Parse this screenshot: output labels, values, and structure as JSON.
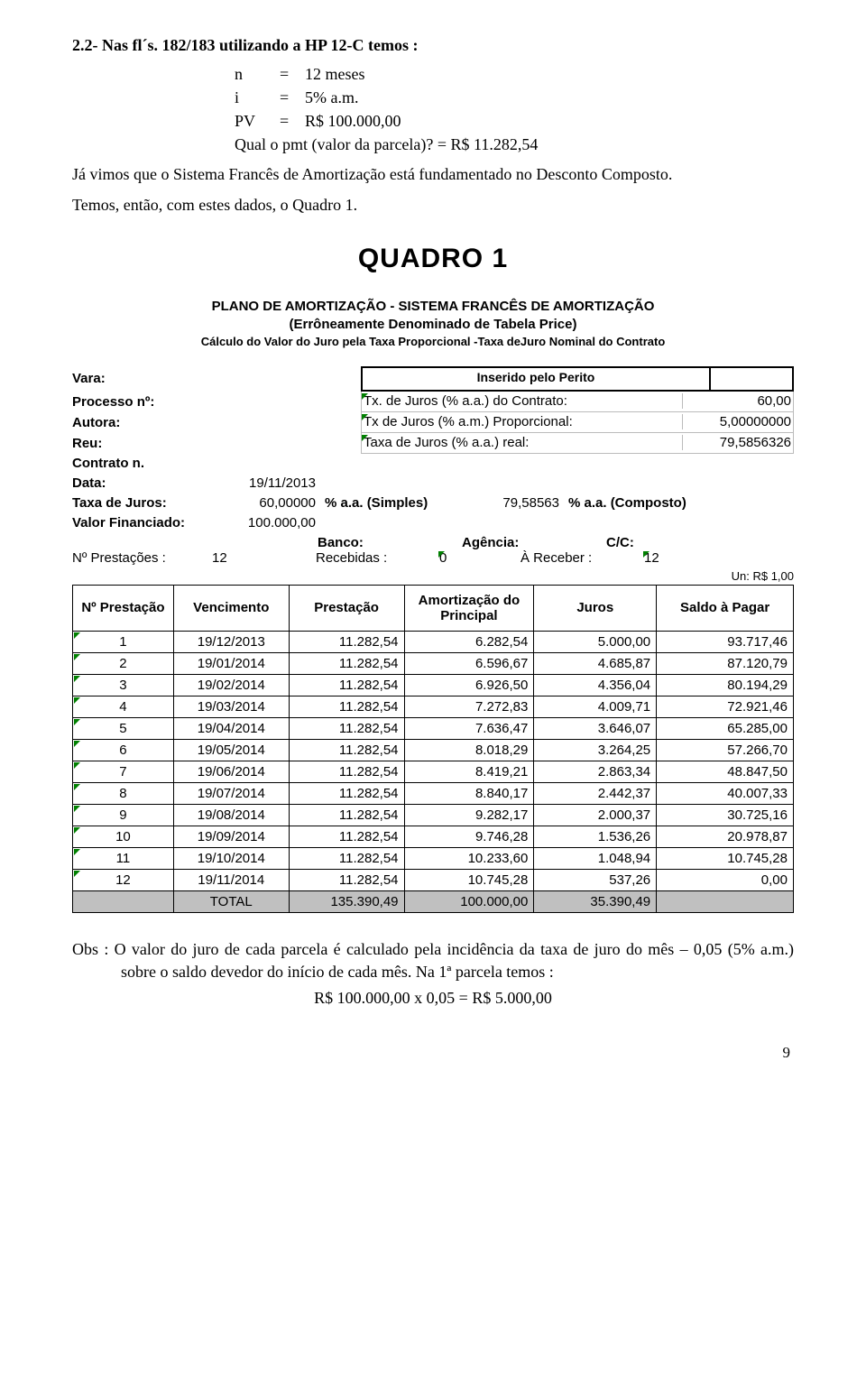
{
  "intro": {
    "heading": "2.2-  Nas fl´s. 182/183 utilizando a HP 12-C temos :",
    "lines": [
      {
        "lbl": "n",
        "eq": "=",
        "val": "12 meses"
      },
      {
        "lbl": "i",
        "eq": "=",
        "val": "5% a.m."
      },
      {
        "lbl": "PV",
        "eq": "=",
        "val": "R$ 100.000,00"
      }
    ],
    "question": "Qual o pmt (valor da parcela)?  = R$ 11.282,54",
    "para1": "Já vimos que o Sistema Francês de Amortização está fundamentado no Desconto Composto.",
    "para2": "Temos, então, com estes dados, o Quadro 1."
  },
  "quadro": {
    "title": "QUADRO  1",
    "header": {
      "l1": "PLANO DE AMORTIZAÇÃO - SISTEMA FRANCÊS DE AMORTIZAÇÃO",
      "l2": "(Errôneamente Denominado de Tabela Price)",
      "l3": "Cálculo do Valor do Juro pela Taxa Proporcional -Taxa deJuro Nominal do Contrato"
    },
    "perito": "Inserido pelo Perito",
    "meta_labels": {
      "vara": "Vara:",
      "processo": "Processo nº:",
      "autora": "Autora:",
      "reu": "Reu:",
      "contrato": "Contrato n.",
      "data": "Data:",
      "taxa": "Taxa de Juros:",
      "valor_fin": "Valor Financiado:",
      "banco": "Banco:",
      "agencia": "Agência:",
      "cc": "C/C:",
      "n_prest": "Nº Prestações :",
      "recebidas": "Recebidas :",
      "a_receber": "À Receber :"
    },
    "rates": {
      "r1_desc": "Tx. de Juros (% a.a.) do Contrato:",
      "r1_val": "60,00",
      "r2_desc": "Tx de Juros (% a.m.) Proporcional:",
      "r2_val": "5,00000000",
      "r3_desc": "Taxa de Juros (% a.a.) real:",
      "r3_val": "79,5856326"
    },
    "meta_vals": {
      "data": "19/11/2013",
      "taxa_val": "60,00000",
      "taxa_unit": "% a.a. (Simples)",
      "taxa_comp_val": "79,58563",
      "taxa_comp_unit": "% a.a. (Composto)",
      "valor_fin": "100.000,00",
      "n_prest": "12",
      "recebidas": "0",
      "a_receber": "12"
    },
    "unit": "Un: R$ 1,00",
    "columns": [
      "Nº Prestação",
      "Vencimento",
      "Prestação",
      "Amortização do Principal",
      "Juros",
      "Saldo à Pagar"
    ],
    "rows": [
      [
        "1",
        "19/12/2013",
        "11.282,54",
        "6.282,54",
        "5.000,00",
        "93.717,46"
      ],
      [
        "2",
        "19/01/2014",
        "11.282,54",
        "6.596,67",
        "4.685,87",
        "87.120,79"
      ],
      [
        "3",
        "19/02/2014",
        "11.282,54",
        "6.926,50",
        "4.356,04",
        "80.194,29"
      ],
      [
        "4",
        "19/03/2014",
        "11.282,54",
        "7.272,83",
        "4.009,71",
        "72.921,46"
      ],
      [
        "5",
        "19/04/2014",
        "11.282,54",
        "7.636,47",
        "3.646,07",
        "65.285,00"
      ],
      [
        "6",
        "19/05/2014",
        "11.282,54",
        "8.018,29",
        "3.264,25",
        "57.266,70"
      ],
      [
        "7",
        "19/06/2014",
        "11.282,54",
        "8.419,21",
        "2.863,34",
        "48.847,50"
      ],
      [
        "8",
        "19/07/2014",
        "11.282,54",
        "8.840,17",
        "2.442,37",
        "40.007,33"
      ],
      [
        "9",
        "19/08/2014",
        "11.282,54",
        "9.282,17",
        "2.000,37",
        "30.725,16"
      ],
      [
        "10",
        "19/09/2014",
        "11.282,54",
        "9.746,28",
        "1.536,26",
        "20.978,87"
      ],
      [
        "11",
        "19/10/2014",
        "11.282,54",
        "10.233,60",
        "1.048,94",
        "10.745,28"
      ],
      [
        "12",
        "19/11/2014",
        "11.282,54",
        "10.745,28",
        "537,26",
        "0,00"
      ]
    ],
    "total_row": [
      "",
      "TOTAL",
      "135.390,49",
      "100.000,00",
      "35.390,49",
      ""
    ]
  },
  "obs": {
    "text": "Obs :  O valor do juro de cada parcela é calculado pela incidência da taxa de juro do mês – 0,05 (5% a.m.) sobre o saldo devedor do início de cada mês.  Na 1ª parcela temos :",
    "calc": "R$ 100.000,00  x  0,05  =  R$ 5.000,00"
  },
  "page_number": "9",
  "colors": {
    "total_bg": "#c0c0c0",
    "marker": "#008000"
  }
}
